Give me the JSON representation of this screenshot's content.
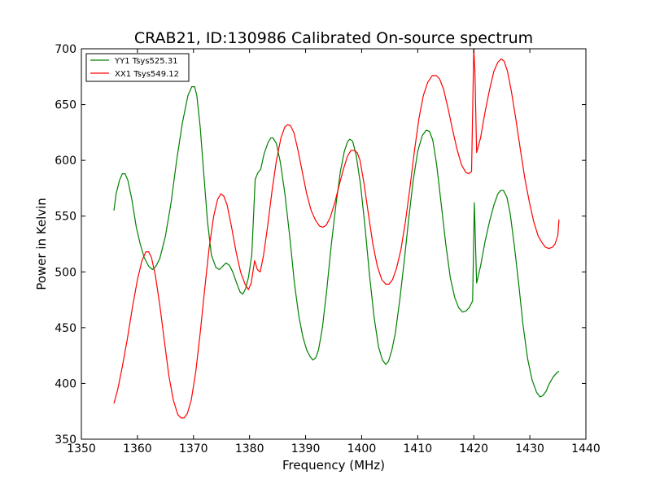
{
  "chart_data": {
    "type": "line",
    "title": "CRAB21, ID:130986 Calibrated On-source spectrum",
    "xlabel": "Frequency (MHz)",
    "ylabel": "Power in Kelvin",
    "xlim": [
      1350,
      1440
    ],
    "ylim": [
      350,
      700
    ],
    "x_ticks": [
      1350,
      1360,
      1370,
      1380,
      1390,
      1400,
      1410,
      1420,
      1430,
      1440
    ],
    "y_ticks": [
      350,
      400,
      450,
      500,
      550,
      600,
      650,
      700
    ],
    "grid": false,
    "legend": "top-left",
    "series": [
      {
        "name": "YY1 Tsys525.31",
        "color": "#008000",
        "points": [
          [
            1355.8,
            555
          ],
          [
            1356.2,
            570
          ],
          [
            1356.8,
            582
          ],
          [
            1357.3,
            588
          ],
          [
            1357.8,
            588
          ],
          [
            1358.3,
            582
          ],
          [
            1359.0,
            565
          ],
          [
            1359.8,
            540
          ],
          [
            1360.5,
            525
          ],
          [
            1361.2,
            513
          ],
          [
            1362.0,
            505
          ],
          [
            1362.7,
            502
          ],
          [
            1363.3,
            505
          ],
          [
            1364.0,
            512
          ],
          [
            1365.0,
            532
          ],
          [
            1366.0,
            562
          ],
          [
            1367.0,
            600
          ],
          [
            1368.0,
            633
          ],
          [
            1369.0,
            658
          ],
          [
            1369.7,
            666
          ],
          [
            1370.2,
            666
          ],
          [
            1370.6,
            658
          ],
          [
            1371.2,
            630
          ],
          [
            1371.8,
            590
          ],
          [
            1372.5,
            545
          ],
          [
            1373.2,
            515
          ],
          [
            1374.0,
            504
          ],
          [
            1374.6,
            502
          ],
          [
            1375.2,
            505
          ],
          [
            1375.8,
            508
          ],
          [
            1376.4,
            506
          ],
          [
            1377.0,
            500
          ],
          [
            1377.7,
            490
          ],
          [
            1378.3,
            482
          ],
          [
            1378.8,
            480
          ],
          [
            1379.3,
            485
          ],
          [
            1379.8,
            495
          ],
          [
            1380.4,
            515
          ],
          [
            1381.0,
            583
          ],
          [
            1381.5,
            589
          ],
          [
            1382.0,
            592
          ],
          [
            1382.6,
            606
          ],
          [
            1383.3,
            616
          ],
          [
            1383.8,
            620
          ],
          [
            1384.2,
            620
          ],
          [
            1384.8,
            615
          ],
          [
            1385.5,
            598
          ],
          [
            1386.3,
            570
          ],
          [
            1387.2,
            530
          ],
          [
            1388.0,
            490
          ],
          [
            1388.8,
            460
          ],
          [
            1389.5,
            442
          ],
          [
            1390.2,
            430
          ],
          [
            1390.8,
            424
          ],
          [
            1391.3,
            421
          ],
          [
            1391.8,
            423
          ],
          [
            1392.3,
            430
          ],
          [
            1393.0,
            450
          ],
          [
            1393.8,
            485
          ],
          [
            1394.6,
            525
          ],
          [
            1395.4,
            560
          ],
          [
            1396.2,
            590
          ],
          [
            1396.9,
            608
          ],
          [
            1397.5,
            617
          ],
          [
            1397.9,
            619
          ],
          [
            1398.4,
            617
          ],
          [
            1399.0,
            605
          ],
          [
            1399.8,
            578
          ],
          [
            1400.6,
            540
          ],
          [
            1401.4,
            497
          ],
          [
            1402.2,
            460
          ],
          [
            1403.0,
            433
          ],
          [
            1403.7,
            421
          ],
          [
            1404.3,
            417
          ],
          [
            1404.8,
            420
          ],
          [
            1405.4,
            430
          ],
          [
            1406.0,
            445
          ],
          [
            1406.8,
            475
          ],
          [
            1407.6,
            510
          ],
          [
            1408.4,
            548
          ],
          [
            1409.2,
            582
          ],
          [
            1410.0,
            608
          ],
          [
            1410.8,
            622
          ],
          [
            1411.5,
            627
          ],
          [
            1412.1,
            626
          ],
          [
            1412.7,
            618
          ],
          [
            1413.4,
            595
          ],
          [
            1414.2,
            560
          ],
          [
            1415.0,
            525
          ],
          [
            1415.8,
            495
          ],
          [
            1416.6,
            477
          ],
          [
            1417.3,
            468
          ],
          [
            1418.0,
            464
          ],
          [
            1418.6,
            465
          ],
          [
            1419.2,
            468
          ],
          [
            1419.8,
            474
          ],
          [
            1420.1,
            562
          ],
          [
            1420.5,
            490
          ],
          [
            1421.2,
            505
          ],
          [
            1422.0,
            527
          ],
          [
            1422.8,
            545
          ],
          [
            1423.6,
            560
          ],
          [
            1424.3,
            570
          ],
          [
            1424.8,
            573
          ],
          [
            1425.3,
            573
          ],
          [
            1425.9,
            567
          ],
          [
            1426.5,
            552
          ],
          [
            1427.2,
            525
          ],
          [
            1428.0,
            490
          ],
          [
            1428.8,
            452
          ],
          [
            1429.6,
            422
          ],
          [
            1430.4,
            403
          ],
          [
            1431.2,
            392
          ],
          [
            1431.8,
            388
          ],
          [
            1432.3,
            389
          ],
          [
            1432.9,
            393
          ],
          [
            1433.5,
            400
          ],
          [
            1434.2,
            406
          ],
          [
            1434.9,
            410
          ],
          [
            1435.2,
            411
          ]
        ]
      },
      {
        "name": "XX1 Tsys549.12",
        "color": "#ff0000",
        "points": [
          [
            1355.8,
            382
          ],
          [
            1356.5,
            395
          ],
          [
            1357.3,
            415
          ],
          [
            1358.2,
            440
          ],
          [
            1359.1,
            468
          ],
          [
            1360.0,
            493
          ],
          [
            1360.8,
            510
          ],
          [
            1361.5,
            518
          ],
          [
            1362.0,
            518
          ],
          [
            1362.5,
            513
          ],
          [
            1363.2,
            497
          ],
          [
            1364.0,
            470
          ],
          [
            1364.8,
            438
          ],
          [
            1365.6,
            407
          ],
          [
            1366.4,
            385
          ],
          [
            1367.2,
            372
          ],
          [
            1367.8,
            369
          ],
          [
            1368.3,
            369
          ],
          [
            1368.9,
            373
          ],
          [
            1369.6,
            385
          ],
          [
            1370.4,
            410
          ],
          [
            1371.2,
            445
          ],
          [
            1372.0,
            485
          ],
          [
            1372.8,
            522
          ],
          [
            1373.6,
            550
          ],
          [
            1374.3,
            565
          ],
          [
            1374.9,
            570
          ],
          [
            1375.4,
            568
          ],
          [
            1376.0,
            560
          ],
          [
            1376.8,
            540
          ],
          [
            1377.6,
            518
          ],
          [
            1378.4,
            500
          ],
          [
            1379.2,
            489
          ],
          [
            1379.8,
            484
          ],
          [
            1380.3,
            490
          ],
          [
            1380.9,
            510
          ],
          [
            1381.4,
            502
          ],
          [
            1381.9,
            500
          ],
          [
            1382.5,
            515
          ],
          [
            1383.2,
            540
          ],
          [
            1384.0,
            572
          ],
          [
            1384.8,
            600
          ],
          [
            1385.6,
            620
          ],
          [
            1386.3,
            630
          ],
          [
            1386.8,
            632
          ],
          [
            1387.3,
            631
          ],
          [
            1387.9,
            625
          ],
          [
            1388.6,
            610
          ],
          [
            1389.4,
            590
          ],
          [
            1390.2,
            570
          ],
          [
            1391.0,
            555
          ],
          [
            1391.8,
            546
          ],
          [
            1392.5,
            541
          ],
          [
            1393.1,
            540
          ],
          [
            1393.7,
            542
          ],
          [
            1394.4,
            549
          ],
          [
            1395.2,
            562
          ],
          [
            1396.0,
            578
          ],
          [
            1396.8,
            593
          ],
          [
            1397.5,
            604
          ],
          [
            1398.1,
            609
          ],
          [
            1398.6,
            609
          ],
          [
            1399.2,
            607
          ],
          [
            1399.7,
            600
          ],
          [
            1400.4,
            580
          ],
          [
            1401.2,
            552
          ],
          [
            1402.0,
            525
          ],
          [
            1402.8,
            505
          ],
          [
            1403.6,
            493
          ],
          [
            1404.3,
            489
          ],
          [
            1404.9,
            489
          ],
          [
            1405.5,
            493
          ],
          [
            1406.2,
            503
          ],
          [
            1407.0,
            520
          ],
          [
            1407.8,
            545
          ],
          [
            1408.6,
            575
          ],
          [
            1409.4,
            608
          ],
          [
            1410.2,
            637
          ],
          [
            1411.0,
            658
          ],
          [
            1411.8,
            670
          ],
          [
            1412.6,
            676
          ],
          [
            1413.3,
            676
          ],
          [
            1413.9,
            673
          ],
          [
            1414.6,
            664
          ],
          [
            1415.4,
            647
          ],
          [
            1416.2,
            628
          ],
          [
            1417.0,
            610
          ],
          [
            1417.8,
            596
          ],
          [
            1418.6,
            589
          ],
          [
            1419.1,
            588
          ],
          [
            1419.6,
            590
          ],
          [
            1420.0,
            700
          ],
          [
            1420.2,
            680
          ],
          [
            1420.5,
            607
          ],
          [
            1421.2,
            620
          ],
          [
            1422.0,
            643
          ],
          [
            1422.8,
            663
          ],
          [
            1423.6,
            680
          ],
          [
            1424.3,
            688
          ],
          [
            1424.9,
            691
          ],
          [
            1425.4,
            689
          ],
          [
            1426.0,
            680
          ],
          [
            1426.7,
            662
          ],
          [
            1427.5,
            637
          ],
          [
            1428.3,
            610
          ],
          [
            1429.1,
            584
          ],
          [
            1429.9,
            563
          ],
          [
            1430.7,
            545
          ],
          [
            1431.5,
            532
          ],
          [
            1432.2,
            526
          ],
          [
            1432.8,
            522
          ],
          [
            1433.4,
            521
          ],
          [
            1434.0,
            522
          ],
          [
            1434.5,
            525
          ],
          [
            1435.0,
            533
          ],
          [
            1435.2,
            547
          ]
        ]
      }
    ]
  }
}
